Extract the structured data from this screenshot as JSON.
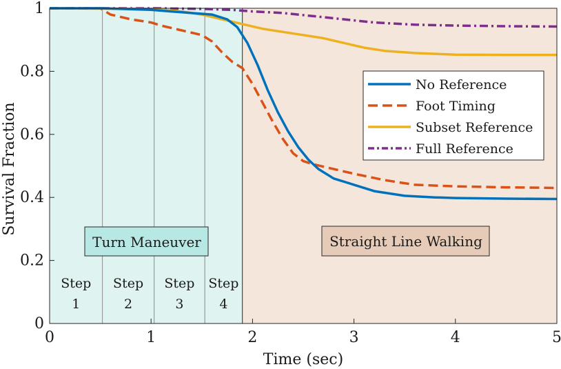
{
  "chart_data": {
    "type": "line",
    "xlabel": "Time (sec)",
    "ylabel": "Survival Fraction",
    "xlim": [
      0,
      5
    ],
    "ylim": [
      0,
      1
    ],
    "x_ticks": [
      "0",
      "1",
      "2",
      "3",
      "4",
      "5"
    ],
    "y_ticks": [
      "0",
      "0.2",
      "0.4",
      "0.6",
      "0.8",
      "1"
    ],
    "legend_position": "upper-right",
    "regions": [
      {
        "label": "Turn Maneuver",
        "x_start": 0,
        "x_end": 1.9,
        "color": "#dff3f1"
      },
      {
        "label": "Straight Line Walking",
        "x_start": 1.9,
        "x_end": 5,
        "color": "#f5e6dc"
      }
    ],
    "region_label_colors": {
      "turn": "#b7e8e3",
      "straight": "#e6ccb8"
    },
    "steps": [
      {
        "line1": "Step",
        "line2": "1",
        "x_start": 0,
        "x_end": 0.52
      },
      {
        "line1": "Step",
        "line2": "2",
        "x_start": 0.52,
        "x_end": 1.03
      },
      {
        "line1": "Step",
        "line2": "3",
        "x_start": 1.03,
        "x_end": 1.53
      },
      {
        "line1": "Step",
        "line2": "4",
        "x_start": 1.53,
        "x_end": 1.9
      }
    ],
    "series": [
      {
        "name": "No Reference",
        "color": "#0072bd",
        "style": "solid",
        "x": [
          0,
          0.5,
          1.0,
          1.2,
          1.4,
          1.6,
          1.75,
          1.85,
          1.95,
          2.05,
          2.15,
          2.25,
          2.35,
          2.45,
          2.55,
          2.65,
          2.8,
          3.0,
          3.2,
          3.5,
          3.8,
          4.0,
          4.5,
          5.0
        ],
        "y": [
          1.0,
          1.0,
          0.995,
          0.99,
          0.985,
          0.98,
          0.965,
          0.94,
          0.89,
          0.82,
          0.74,
          0.67,
          0.61,
          0.56,
          0.52,
          0.49,
          0.46,
          0.44,
          0.42,
          0.405,
          0.4,
          0.398,
          0.396,
          0.395
        ]
      },
      {
        "name": "Foot Timing",
        "color": "#d95319",
        "style": "dashed",
        "x": [
          0,
          0.5,
          0.6,
          0.8,
          1.0,
          1.1,
          1.3,
          1.5,
          1.6,
          1.7,
          1.8,
          1.9,
          2.0,
          2.1,
          2.2,
          2.3,
          2.4,
          2.5,
          2.6,
          2.8,
          3.0,
          3.3,
          3.6,
          4.0,
          4.5,
          5.0
        ],
        "y": [
          1.0,
          1.0,
          0.98,
          0.965,
          0.955,
          0.945,
          0.93,
          0.915,
          0.895,
          0.86,
          0.83,
          0.81,
          0.76,
          0.7,
          0.64,
          0.585,
          0.54,
          0.515,
          0.505,
          0.49,
          0.475,
          0.455,
          0.44,
          0.435,
          0.432,
          0.43
        ]
      },
      {
        "name": "Subset Reference",
        "color": "#edb120",
        "style": "solid",
        "x": [
          0,
          1.0,
          1.3,
          1.5,
          1.7,
          1.9,
          2.1,
          2.3,
          2.5,
          2.7,
          2.9,
          3.1,
          3.3,
          3.6,
          4.0,
          4.5,
          5.0
        ],
        "y": [
          1.0,
          0.998,
          0.99,
          0.98,
          0.965,
          0.95,
          0.935,
          0.925,
          0.915,
          0.905,
          0.89,
          0.875,
          0.865,
          0.858,
          0.853,
          0.852,
          0.852
        ]
      },
      {
        "name": "Full Reference",
        "color": "#7e2f8e",
        "style": "dashdot",
        "x": [
          0,
          1.0,
          1.5,
          1.8,
          2.0,
          2.3,
          2.6,
          2.9,
          3.2,
          3.6,
          4.0,
          4.5,
          5.0
        ],
        "y": [
          1.0,
          1.0,
          0.998,
          0.995,
          0.99,
          0.985,
          0.975,
          0.965,
          0.955,
          0.948,
          0.945,
          0.943,
          0.942
        ]
      }
    ]
  }
}
